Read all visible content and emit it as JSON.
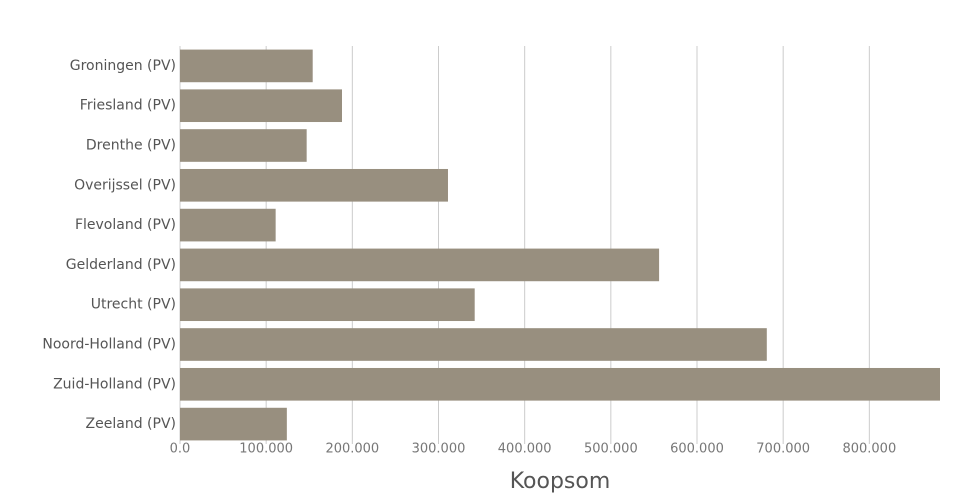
{
  "chart_data": {
    "type": "barh",
    "x_label": "Koopsom",
    "categories": [
      "Groningen (PV)",
      "Friesland (PV)",
      "Drenthe (PV)",
      "Overijssel (PV)",
      "Flevoland (PV)",
      "Gelderland (PV)",
      "Utrecht (PV)",
      "Noord-Holland (PV)",
      "Zuid-Holland (PV)",
      "Zeeland (PV)"
    ],
    "values": [
      154000,
      188000,
      147000,
      311000,
      111000,
      556000,
      342000,
      681000,
      882000,
      124000
    ],
    "color": "#988f7f",
    "xlim": [
      0,
      882000
    ],
    "xticks": [
      {
        "value": 0,
        "label": "0.0"
      },
      {
        "value": 100000,
        "label": "100.000"
      },
      {
        "value": 200000,
        "label": "200.000"
      },
      {
        "value": 300000,
        "label": "300.000"
      },
      {
        "value": 400000,
        "label": "400.000"
      },
      {
        "value": 500000,
        "label": "500.000"
      },
      {
        "value": 600000,
        "label": "600.000"
      },
      {
        "value": 700000,
        "label": "700.000"
      },
      {
        "value": 800000,
        "label": "800.000"
      }
    ],
    "grid": true
  }
}
